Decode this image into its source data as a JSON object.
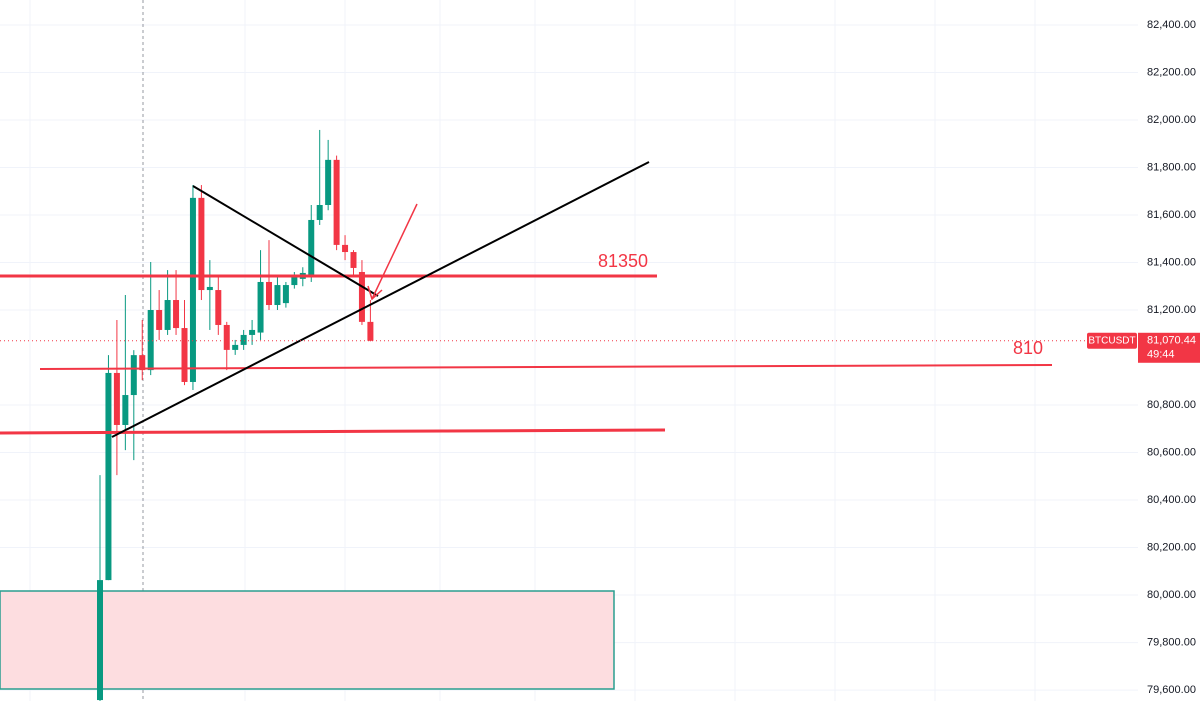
{
  "chart_data": {
    "type": "candlestick",
    "symbol": "BTCUSDT",
    "countdown": "49:44",
    "last_price": {
      "value": 81070.44,
      "label": "81,070.44"
    },
    "annotations": [
      "81350",
      "810"
    ],
    "up_color": "#089981",
    "down_color": "#f23645",
    "ylim": [
      79554,
      82505
    ],
    "yticks": [
      {
        "value": 79600,
        "label": "79,600.00"
      },
      {
        "value": 79800,
        "label": "79,800.00"
      },
      {
        "value": 80000,
        "label": "80,000.00"
      },
      {
        "value": 80200,
        "label": "80,200.00"
      },
      {
        "value": 80400,
        "label": "80,400.00"
      },
      {
        "value": 80600,
        "label": "80,600.00"
      },
      {
        "value": 80800,
        "label": "80,800.00"
      },
      {
        "value": 81200,
        "label": "81,200.00"
      },
      {
        "value": 81400,
        "label": "81,400.00"
      },
      {
        "value": 81600,
        "label": "81,600.00"
      },
      {
        "value": 81800,
        "label": "81,800.00"
      },
      {
        "value": 82000,
        "label": "82,000.00"
      },
      {
        "value": 82200,
        "label": "82,200.00"
      },
      {
        "value": 82400,
        "label": "82,400.00"
      }
    ],
    "grid": true,
    "series": {
      "open": [
        79558,
        80063,
        80935,
        80716,
        80842,
        81010,
        80947,
        81200,
        81116,
        81242,
        81124,
        80897,
        81672,
        81284,
        81284,
        81137,
        81032,
        81053,
        81095,
        81105,
        81318,
        81221,
        81229,
        81305,
        81331,
        81347,
        81579,
        81642,
        81832,
        81474,
        81444,
        81360,
        81150
      ],
      "high": [
        80505,
        81010,
        81158,
        81263,
        81031,
        81158,
        81402,
        81284,
        81368,
        81368,
        81242,
        81726,
        81726,
        81410,
        81347,
        81150,
        81074,
        81116,
        81158,
        81452,
        81494,
        81340,
        81318,
        81360,
        81380,
        81642,
        81958,
        81916,
        81850,
        81515,
        81452,
        81410,
        81242
      ],
      "low": [
        79540,
        80063,
        80505,
        80610,
        80568,
        80905,
        80926,
        81074,
        81095,
        81095,
        80884,
        80863,
        81242,
        81116,
        81095,
        80947,
        81011,
        81032,
        81053,
        81074,
        81200,
        81200,
        81210,
        81290,
        81300,
        81318,
        81558,
        81620,
        81452,
        81410,
        81347,
        81137,
        81068
      ],
      "close": [
        80063,
        80935,
        80716,
        80842,
        81010,
        80947,
        81200,
        81116,
        81242,
        81124,
        80897,
        81672,
        81284,
        81297,
        81137,
        81032,
        81053,
        81095,
        81116,
        81318,
        81221,
        81305,
        81305,
        81339,
        81356,
        81579,
        81642,
        81832,
        81474,
        81444,
        81377,
        81150,
        81070.44
      ]
    }
  }
}
